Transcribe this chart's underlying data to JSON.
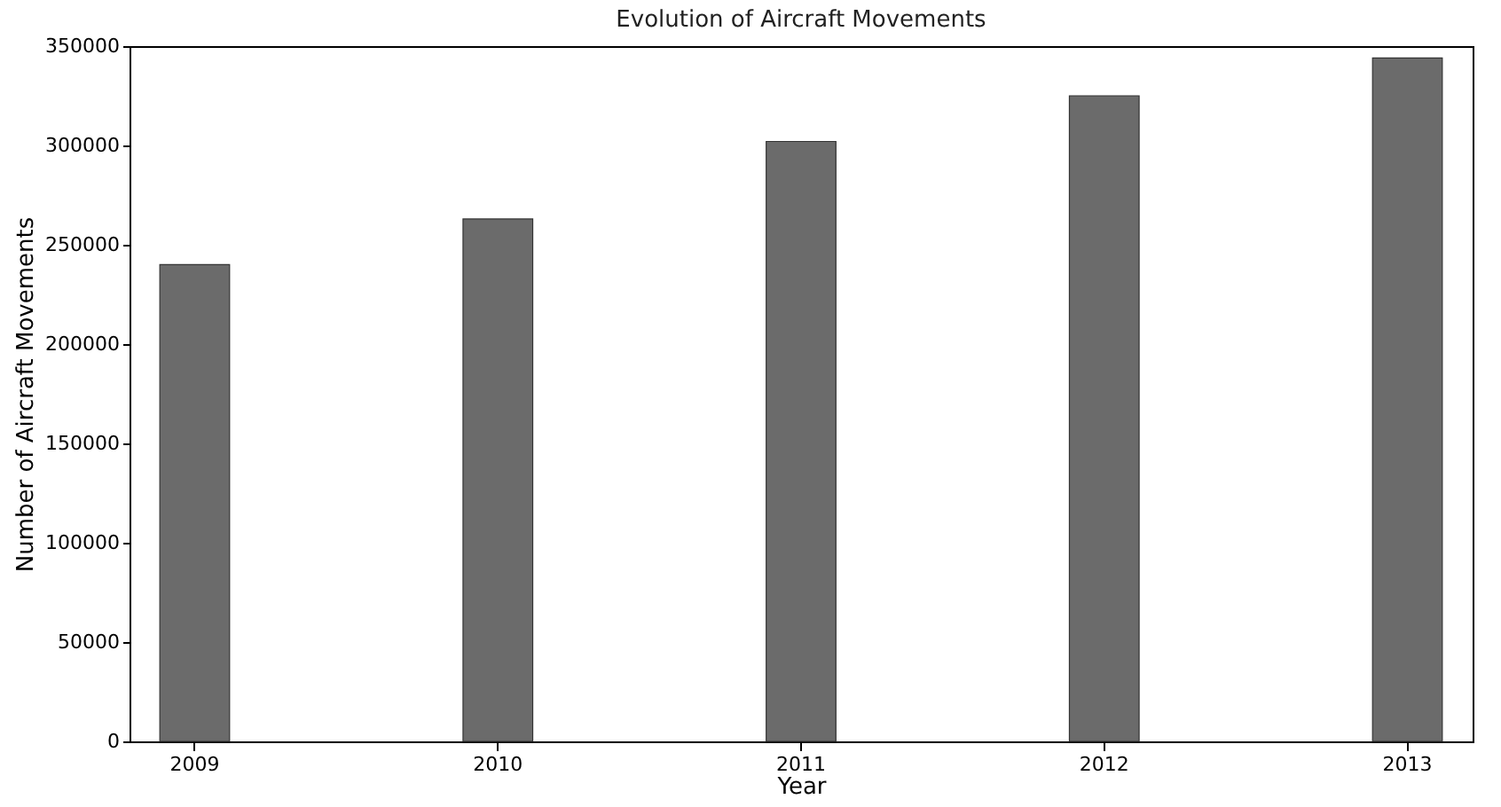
{
  "chart_data": {
    "type": "bar",
    "title": "Evolution of Aircraft Movements",
    "xlabel": "Year",
    "ylabel": "Number of Aircraft Movements",
    "categories": [
      "2009",
      "2010",
      "2011",
      "2012",
      "2013"
    ],
    "values": [
      240000,
      263000,
      302000,
      325000,
      344000
    ],
    "color": "#6b6b6b",
    "ylim": [
      0,
      350000
    ],
    "yticks": [
      0,
      50000,
      100000,
      150000,
      200000,
      250000,
      300000,
      350000
    ],
    "grid": false
  }
}
